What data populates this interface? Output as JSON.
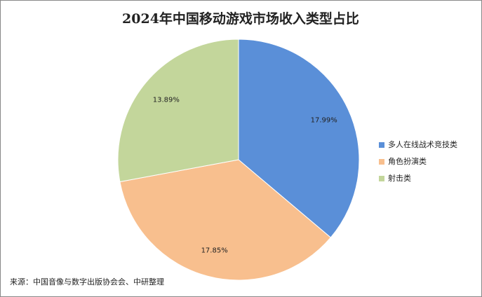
{
  "chart_data": {
    "type": "pie",
    "title": "2024年中国移动游戏市场收入类型占比",
    "categories": [
      "多人在线战术竞技类",
      "角色扮演类",
      "射击类"
    ],
    "values": [
      17.99,
      17.85,
      13.89
    ],
    "value_labels": [
      "17.99%",
      "17.85%",
      "13.89%"
    ],
    "colors": [
      "#5a8fd8",
      "#f8bf8e",
      "#c3d69b"
    ],
    "legend": "right",
    "source": "来源：中国音像与数字出版协会会、中研整理"
  }
}
